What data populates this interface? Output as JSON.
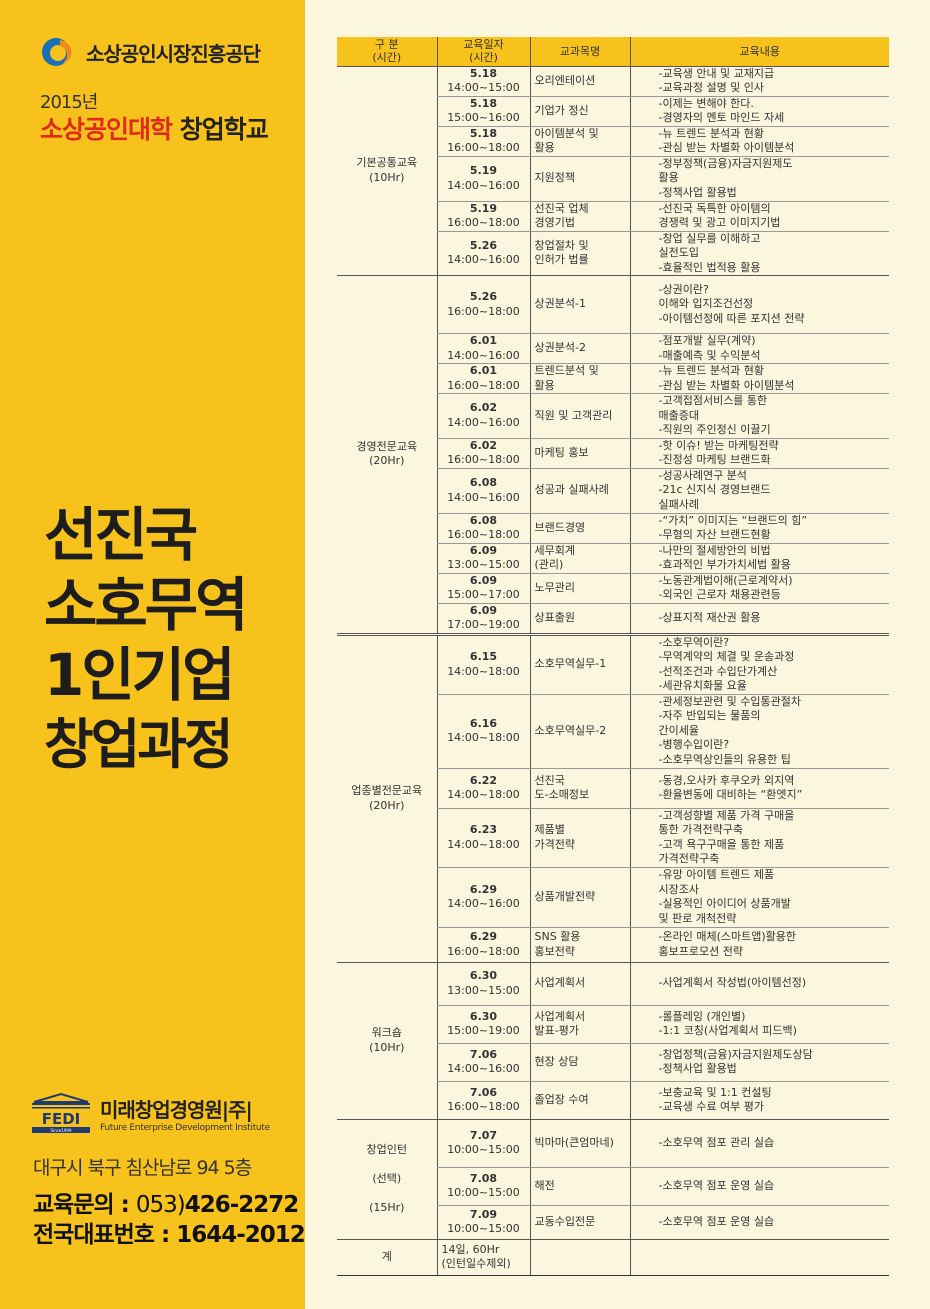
{
  "branding": {
    "org_name": "소상공인시장진흥공단",
    "year": "2015년",
    "school_red": "소상공인대학",
    "school_black": "창업학교",
    "logo_colors": [
      "#1a6fb8",
      "#f08a1c"
    ]
  },
  "title_lines": [
    "선진국",
    "소호무역",
    "1인기업",
    "창업과정"
  ],
  "partner": {
    "logo_text": "FEDI",
    "since": "Since1999",
    "name": "미래창업경영원|주|",
    "name_en": "Future Enterprise Development Institute"
  },
  "contact": {
    "address": "대구시 북구 침산남로 94 5층",
    "edu_label": "교육문의 : ",
    "edu_area": "053)",
    "edu_number": "426-2272",
    "rep_label": "전국대표번호 : ",
    "rep_number": "1644-2012"
  },
  "colors": {
    "accent": "#f7c21c",
    "background": "#fbf6de",
    "red": "#e02a1e"
  },
  "table": {
    "headers": [
      "구 분\n(시간)",
      "교육일자\n(시간)",
      "교과목명",
      "교육내용"
    ],
    "sections": [
      {
        "category": "기본공통교육\n(10Hr)",
        "rows": [
          {
            "date": "5.18",
            "time": "14:00~15:00",
            "subject": "오리엔테이션",
            "content": "-교육생 안내 및 교재지급\n-교육과정 설명 및 인사"
          },
          {
            "date": "5.18",
            "time": "15:00~16:00",
            "subject": "기업가 정신",
            "content": "-이제는 변해야 한다.\n-경영자의 멘토 마인드 자세"
          },
          {
            "date": "5.18",
            "time": "16:00~18:00",
            "subject": "아이템분석 및\n활용",
            "content": "-뉴 트렌드 분석과 현황\n-관심 받는 차별화 아이템분석"
          },
          {
            "date": "5.19",
            "time": "14:00~16:00",
            "subject": "지원정책",
            "content": "-정부정책(금융)자금지원제도\n 활용\n-정책사업 활용법"
          },
          {
            "date": "5.19",
            "time": "16:00~18:00",
            "subject": "선진국 업체\n경영기법",
            "content": "-선진국 독특한 아이템의\n 경쟁력 및 광고 이미지기법"
          },
          {
            "date": "5.26",
            "time": "14:00~16:00",
            "subject": "창업절차 및\n인허가 법률",
            "content": "-창업 실무를 이해하고\n 실전도입\n-효율적인 법적용 활용"
          }
        ]
      },
      {
        "category": "경영전문교육\n(20Hr)",
        "rows": [
          {
            "date": "5.26",
            "time": "16:00~18:00",
            "subject": "상권분석-1",
            "content": "-상권이란?\n 이해와 입지조건선정\n-아이템선정에 따른 포지션 전략"
          },
          {
            "date": "6.01",
            "time": "14:00~16:00",
            "subject": "상권분석-2",
            "content": "-점포개발 실무(계약)\n-매출예측 및 수익분석"
          },
          {
            "date": "6.01",
            "time": "16:00~18:00",
            "subject": "트렌드분석 및\n활용",
            "content": "-뉴 트렌드 분석과 현황\n-관심 받는 차별화 아이템분석"
          },
          {
            "date": "6.02",
            "time": "14:00~16:00",
            "subject": "직원 및 고객관리",
            "content": "-고객접점서비스를 통한\n 매출증대\n-직원의 주인정신 이끌기"
          },
          {
            "date": "6.02",
            "time": "16:00~18:00",
            "subject": "마케팅 홍보",
            "content": "-핫 이슈! 받는 마케팅전략\n-진정성 마케팅 브랜드화"
          },
          {
            "date": "6.08",
            "time": "14:00~16:00",
            "subject": "성공과 실패사례",
            "content": "-성공사례연구 분석\n-21c 신지식 경영브랜드\n 실패사례"
          },
          {
            "date": "6.08",
            "time": "16:00~18:00",
            "subject": "브랜드경영",
            "content": "-“가치” 이미지는 “브랜드의 힘”\n-무형의 자산 브랜드현황"
          },
          {
            "date": "6.09",
            "time": "13:00~15:00",
            "subject": "세무회계\n(관리)",
            "content": "-나만의 절세방안의 비법\n-효과적인 부가가치세법 활용"
          },
          {
            "date": "6.09",
            "time": "15:00~17:00",
            "subject": "노무관리",
            "content": "-노동관계법이해(근로계약서)\n-외국인 근로자 채용관련등"
          },
          {
            "date": "6.09",
            "time": "17:00~19:00",
            "subject": "상표출원",
            "content": "-상표지적 재산권 활용"
          }
        ]
      },
      {
        "category": "업종별전문교육\n(20Hr)",
        "rows": [
          {
            "date": "6.15",
            "time": "14:00~18:00",
            "subject": "소호무역실무-1",
            "content": "-소호무역이란?\n-무역계약의 체결 및 운송과정\n-선적조건과 수입단가계산\n-세관유치화물 요율"
          },
          {
            "date": "6.16",
            "time": "14:00~18:00",
            "subject": "소호무역실무-2",
            "content": "-관세정보관련 및 수입통관절차\n-자주 반입되는 물품의\n 간이세율\n-병행수입이란?\n-소호무역상인들의 유용한 팁"
          },
          {
            "date": "6.22",
            "time": "14:00~18:00",
            "subject": "선진국\n도-소매정보",
            "content": "-동경,오사카 후쿠오카 외지역\n-환율변동에 대비하는 “환엣지”"
          },
          {
            "date": "6.23",
            "time": "14:00~18:00",
            "subject": "제품별\n가격전략",
            "content": "-고객성향별 제품 가격 구매을\n 통한 가격전략구축\n-고객 욕구구매을 통한 제품\n 가격전략구축"
          },
          {
            "date": "6.29",
            "time": "14:00~16:00",
            "subject": "상품개발전략",
            "content": "-유망 아이템 트렌드 제품\n 시장조사\n-실용적인 아이디어  상품개발\n 및 판로 개척전략"
          },
          {
            "date": "6.29",
            "time": "16:00~18:00",
            "subject": "SNS 활용\n홍보전략",
            "content": "-온라인 매체(스마트앱)활용한\n 홍보프로모션 전략"
          }
        ]
      },
      {
        "category": "워크숍\n(10Hr)",
        "rows": [
          {
            "date": "6.30",
            "time": "13:00~15:00",
            "subject": "사업계획서",
            "content": "-사업계획서 작성법(아이템선정)"
          },
          {
            "date": "6.30",
            "time": "15:00~19:00",
            "subject": "사업계획서\n발표-평가",
            "content": "-롤플레잉 (개인별)\n-1:1 코칭(사업계획서 피드백)"
          },
          {
            "date": "7.06",
            "time": "14:00~16:00",
            "subject": "현장 상담",
            "content": "-창업정책(금융)자금지원제도상담\n-정책사업 활용법"
          },
          {
            "date": "7.06",
            "time": "16:00~18:00",
            "subject": "졸업장 수여",
            "content": "-보충교육 및 1:1 컨설팅\n-교육생 수료 여부 평가"
          }
        ]
      },
      {
        "category": "창업인턴\n\n(선택)\n\n(15Hr)",
        "rows": [
          {
            "date": "7.07",
            "time": "10:00~15:00",
            "subject": "빅마마(큰엄마네)",
            "content": "-소호무역 점포 관리 실습"
          },
          {
            "date": "7.08",
            "time": "10:00~15:00",
            "subject": "해전",
            "content": "-소호무역 점포 운영 실습"
          },
          {
            "date": "7.09",
            "time": "10:00~15:00",
            "subject": "교동수입전문",
            "content": "-소호무역 점포 운영 실습"
          }
        ]
      }
    ],
    "total": {
      "label": "계",
      "value": "14일, 60Hr\n(인턴일수제외)"
    }
  }
}
